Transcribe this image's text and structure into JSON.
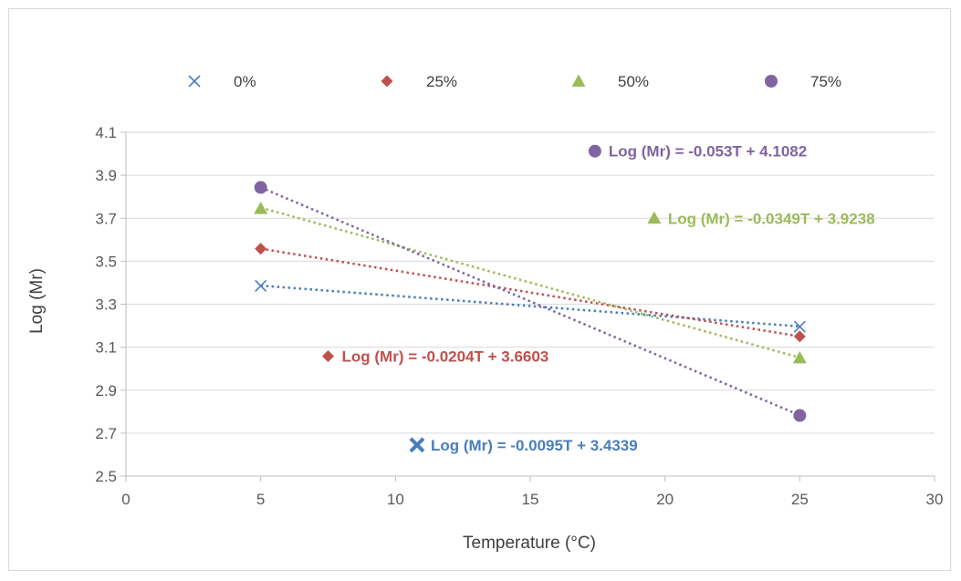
{
  "chart_data": {
    "type": "scatter",
    "title": "",
    "xlabel": "Temperature (°C)",
    "ylabel": "Log (Mr)",
    "xlim": [
      0,
      30
    ],
    "ylim": [
      2.5,
      4.1
    ],
    "x_ticks": [
      0,
      5,
      10,
      15,
      20,
      25,
      30
    ],
    "y_ticks": [
      2.5,
      2.7,
      2.9,
      3.1,
      3.3,
      3.5,
      3.7,
      3.9,
      4.1
    ],
    "y_tick_labels": [
      "2.5",
      "2.7",
      "2.9",
      "3.1",
      "3.3",
      "3.5",
      "3.7",
      "3.9",
      "4.1"
    ],
    "grid": "horizontal",
    "legend_position": "top",
    "series": [
      {
        "name": "0%",
        "color": "#4a7ebb",
        "marker": "x",
        "points": [
          {
            "x": 5,
            "y": 3.385
          },
          {
            "x": 25,
            "y": 3.195
          }
        ],
        "trendline": {
          "type": "linear",
          "slope": -0.0095,
          "intercept": 3.4339,
          "style": "dotted"
        },
        "equation": {
          "text": "Log (Mr) = -0.0095T + 3.4339",
          "marker_x": 10.8,
          "marker_y": 2.645
        }
      },
      {
        "name": "25%",
        "color": "#c0504d",
        "marker": "diamond",
        "points": [
          {
            "x": 5,
            "y": 3.558
          },
          {
            "x": 25,
            "y": 3.15
          }
        ],
        "trendline": {
          "type": "linear",
          "slope": -0.0204,
          "intercept": 3.6603,
          "style": "dotted"
        },
        "equation": {
          "text": "Log (Mr)  = -0.0204T + 3.6603",
          "marker_x": 7.5,
          "marker_y": 3.058
        }
      },
      {
        "name": "50%",
        "color": "#9bbb59",
        "marker": "triangle",
        "points": [
          {
            "x": 5,
            "y": 3.745
          },
          {
            "x": 25,
            "y": 3.05
          }
        ],
        "trendline": {
          "type": "linear",
          "slope": -0.0349,
          "intercept": 3.9238,
          "style": "dotted"
        },
        "equation": {
          "text": "Log (Mr)  = -0.0349T + 3.9238",
          "marker_x": 19.6,
          "marker_y": 3.7
        }
      },
      {
        "name": "75%",
        "color": "#8064a2",
        "marker": "circle",
        "points": [
          {
            "x": 5,
            "y": 3.843
          },
          {
            "x": 25,
            "y": 2.782
          }
        ],
        "trendline": {
          "type": "linear",
          "slope": -0.053,
          "intercept": 4.1082,
          "style": "dotted"
        },
        "equation": {
          "text": "Log (Mr)  = -0.053T + 4.1082",
          "marker_x": 17.4,
          "marker_y": 4.012
        }
      }
    ]
  }
}
